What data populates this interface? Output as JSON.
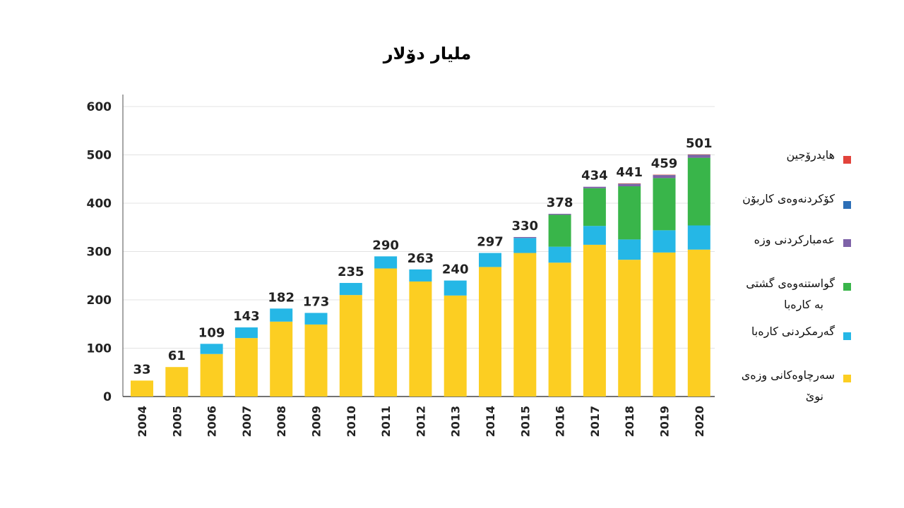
{
  "chart_data": {
    "type": "bar",
    "stacked": true,
    "title": "مليار دۆلار",
    "xlabel": "",
    "ylabel": "",
    "ylim": [
      0,
      600
    ],
    "yticks": [
      0,
      100,
      200,
      300,
      400,
      500,
      600
    ],
    "grid": true,
    "legend_position": "right",
    "categories": [
      "2004",
      "2005",
      "2006",
      "2007",
      "2008",
      "2009",
      "2010",
      "2011",
      "2012",
      "2013",
      "2014",
      "2015",
      "2016",
      "2017",
      "2018",
      "2019",
      "2020"
    ],
    "totals": [
      33,
      61,
      109,
      143,
      182,
      173,
      235,
      290,
      263,
      240,
      297,
      330,
      378,
      434,
      441,
      459,
      501
    ],
    "series": [
      {
        "name": "سەرچاوەکانی وزەی نوێ",
        "color": "#FCCE22",
        "values": [
          33,
          61,
          88,
          121,
          155,
          149,
          210,
          265,
          238,
          209,
          268,
          297,
          277,
          314,
          283,
          298,
          304
        ]
      },
      {
        "name": "گەرمکردنی کارەبا",
        "color": "#25B7E6",
        "values": [
          0,
          0,
          21,
          22,
          27,
          24,
          25,
          25,
          25,
          31,
          29,
          31,
          33,
          39,
          42,
          46,
          50
        ]
      },
      {
        "name": "گواستنەوەی گشتی بە کارەبا",
        "color": "#39B54A",
        "values": [
          0,
          0,
          0,
          0,
          0,
          0,
          0,
          0,
          0,
          0,
          0,
          0,
          66,
          78,
          110,
          108,
          140
        ]
      },
      {
        "name": "عەمبارکردنی وزە",
        "color": "#7E62A8",
        "values": [
          0,
          0,
          0,
          0,
          0,
          0,
          0,
          0,
          0,
          0,
          0,
          2,
          2,
          3,
          4,
          5,
          5
        ]
      },
      {
        "name": "کۆکردنەوەی کاربۆن",
        "color": "#2D6FB7",
        "values": [
          0,
          0,
          0,
          0,
          0,
          0,
          0,
          0,
          0,
          0,
          0,
          0,
          0,
          0,
          1,
          1,
          1
        ]
      },
      {
        "name": "هایدرۆجین",
        "color": "#E2433B",
        "values": [
          0,
          0,
          0,
          0,
          0,
          0,
          0,
          0,
          0,
          0,
          0,
          0,
          0,
          0,
          1,
          1,
          1
        ]
      }
    ]
  },
  "legend": {
    "items": [
      {
        "lines": [
          "هایدرۆجین"
        ],
        "color": "#E2433B"
      },
      {
        "lines": [
          "کۆکردنەوەی کاربۆن"
        ],
        "color": "#2D6FB7"
      },
      {
        "lines": [
          "عەمبارکردنی وزە"
        ],
        "color": "#7E62A8"
      },
      {
        "lines": [
          "گواستنەوەی گشتی",
          "بە کارەبا"
        ],
        "color": "#39B54A"
      },
      {
        "lines": [
          "گەرمکردنی کارەبا"
        ],
        "color": "#25B7E6"
      },
      {
        "lines": [
          "سەرچاوەکانی وزەی",
          "نوێ"
        ],
        "color": "#FCCE22"
      }
    ]
  }
}
